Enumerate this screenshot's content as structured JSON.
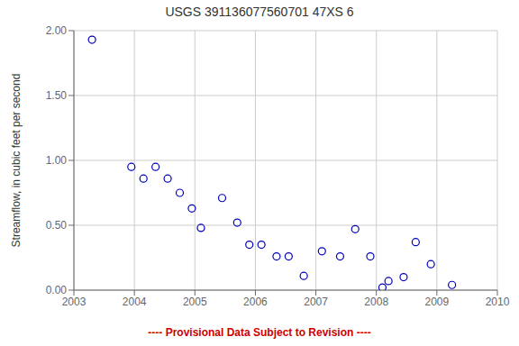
{
  "chart_data": {
    "type": "scatter",
    "title": "USGS 391136077560701 47XS  6",
    "ylabel": "Streamflow, in cubic feet per second",
    "x": [
      2003.3,
      2003.95,
      2004.15,
      2004.35,
      2004.55,
      2004.75,
      2004.95,
      2005.1,
      2005.45,
      2005.7,
      2005.9,
      2006.1,
      2006.35,
      2006.55,
      2006.8,
      2007.1,
      2007.4,
      2007.65,
      2007.9,
      2008.1,
      2008.2,
      2008.45,
      2008.65,
      2008.9,
      2009.25
    ],
    "values": [
      1.93,
      0.95,
      0.86,
      0.95,
      0.86,
      0.75,
      0.63,
      0.48,
      0.71,
      0.52,
      0.35,
      0.35,
      0.26,
      0.26,
      0.11,
      0.3,
      0.26,
      0.47,
      0.26,
      0.02,
      0.07,
      0.1,
      0.37,
      0.2,
      0.04
    ],
    "color": "#0000bb",
    "marker": "circle",
    "xlim": [
      2003,
      2010
    ],
    "ylim": [
      0.0,
      2.0
    ],
    "xticks": [
      2003,
      2004,
      2005,
      2006,
      2007,
      2008,
      2009,
      2010
    ],
    "yticks": [
      {
        "value": 0,
        "label": "0.00"
      },
      {
        "value": 0.5,
        "label": "0.50"
      },
      {
        "value": 1,
        "label": "1.00"
      },
      {
        "value": 1.5,
        "label": "1.50"
      },
      {
        "value": 2,
        "label": "2.00"
      }
    ],
    "grid": true,
    "annotations": [
      {
        "text": "---- Provisional Data Subject to Revision ----",
        "color": "#cc0000"
      }
    ]
  }
}
